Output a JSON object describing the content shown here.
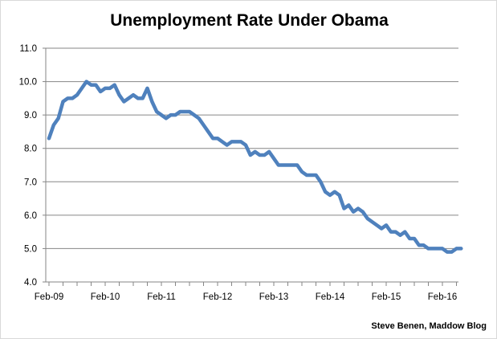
{
  "chart_data": {
    "type": "line",
    "title": "Unemployment Rate Under Obama",
    "credit": "Steve Benen, Maddow Blog",
    "xlabel": "",
    "ylabel": "",
    "ylim": [
      4.0,
      11.0
    ],
    "y_ticks": [
      "4.0",
      "5.0",
      "6.0",
      "7.0",
      "8.0",
      "9.0",
      "10.0",
      "11.0"
    ],
    "x_ticks": [
      "Feb-09",
      "Feb-10",
      "Feb-11",
      "Feb-12",
      "Feb-13",
      "Feb-14",
      "Feb-15",
      "Feb-16"
    ],
    "grid": true,
    "line_color": "#4f81bd",
    "series": [
      {
        "x_start": "2009-02",
        "values": [
          8.3,
          8.7,
          8.9,
          9.4,
          9.5,
          9.5,
          9.6,
          9.8,
          10.0,
          9.9,
          9.9,
          9.7,
          9.8,
          9.8,
          9.9,
          9.6,
          9.4,
          9.5,
          9.6,
          9.5,
          9.5,
          9.8,
          9.4,
          9.1,
          9.0,
          8.9,
          9.0,
          9.0,
          9.1,
          9.1,
          9.1,
          9.0,
          8.9,
          8.7,
          8.5,
          8.3,
          8.3,
          8.2,
          8.1,
          8.2,
          8.2,
          8.2,
          8.1,
          7.8,
          7.9,
          7.8,
          7.8,
          7.9,
          7.7,
          7.5,
          7.5,
          7.5,
          7.5,
          7.5,
          7.3,
          7.2,
          7.2,
          7.2,
          7.0,
          6.7,
          6.6,
          6.7,
          6.6,
          6.2,
          6.3,
          6.1,
          6.2,
          6.1,
          5.9,
          5.8,
          5.7,
          5.6,
          5.7,
          5.5,
          5.5,
          5.4,
          5.5,
          5.3,
          5.3,
          5.1,
          5.1,
          5.0,
          5.0,
          5.0,
          5.0,
          4.9,
          4.9,
          5.0,
          5.0
        ]
      }
    ]
  }
}
